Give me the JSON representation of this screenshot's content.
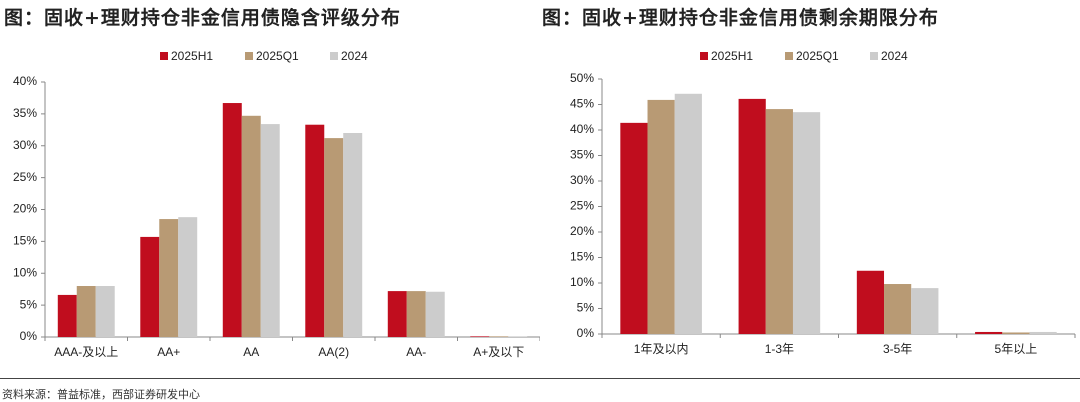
{
  "chart_data": [
    {
      "type": "bar",
      "title": "图：固收+理财持仓非金信用债隐含评级分布",
      "categories": [
        "AAA-及以上",
        "AA+",
        "AA",
        "AA(2)",
        "AA-",
        "A+及以下"
      ],
      "series": [
        {
          "name": "2025H1",
          "color": "#c00d1e",
          "values": [
            6.6,
            15.7,
            36.7,
            33.3,
            7.2,
            0.1
          ]
        },
        {
          "name": "2025Q1",
          "color": "#b89a74",
          "values": [
            8.0,
            18.5,
            34.7,
            31.2,
            7.2,
            0.1
          ]
        },
        {
          "name": "2024",
          "color": "#cccccc",
          "values": [
            8.0,
            18.8,
            33.4,
            32.0,
            7.1,
            0.1
          ]
        }
      ],
      "ylim": [
        0,
        40
      ],
      "yticks": [
        {
          "value": 0,
          "label": "0%"
        },
        {
          "value": 5,
          "label": "5%"
        },
        {
          "value": 10,
          "label": "10%"
        },
        {
          "value": 15,
          "label": "15%"
        },
        {
          "value": 20,
          "label": "20%"
        },
        {
          "value": 25,
          "label": "25%"
        },
        {
          "value": 30,
          "label": "30%"
        },
        {
          "value": 35,
          "label": "35%"
        },
        {
          "value": 40,
          "label": "40%"
        }
      ]
    },
    {
      "type": "bar",
      "title": "图：固收+理财持仓非金信用债剩余期限分布",
      "categories": [
        "1年及以内",
        "1-3年",
        "3-5年",
        "5年以上"
      ],
      "series": [
        {
          "name": "2025H1",
          "color": "#c00d1e",
          "values": [
            41.4,
            46.1,
            12.4,
            0.4
          ]
        },
        {
          "name": "2025Q1",
          "color": "#b89a74",
          "values": [
            45.9,
            44.1,
            9.8,
            0.3
          ]
        },
        {
          "name": "2024",
          "color": "#cccccc",
          "values": [
            47.1,
            43.5,
            9.0,
            0.4
          ]
        }
      ],
      "ylim": [
        0,
        50
      ],
      "yticks": [
        {
          "value": 0,
          "label": "0%"
        },
        {
          "value": 5,
          "label": "5%"
        },
        {
          "value": 10,
          "label": "10%"
        },
        {
          "value": 15,
          "label": "15%"
        },
        {
          "value": 20,
          "label": "20%"
        },
        {
          "value": 25,
          "label": "25%"
        },
        {
          "value": 30,
          "label": "30%"
        },
        {
          "value": 35,
          "label": "35%"
        },
        {
          "value": 40,
          "label": "40%"
        },
        {
          "value": 45,
          "label": "45%"
        },
        {
          "value": 50,
          "label": "50%"
        }
      ]
    }
  ],
  "source": "资料来源：普益标准，西部证券研发中心"
}
